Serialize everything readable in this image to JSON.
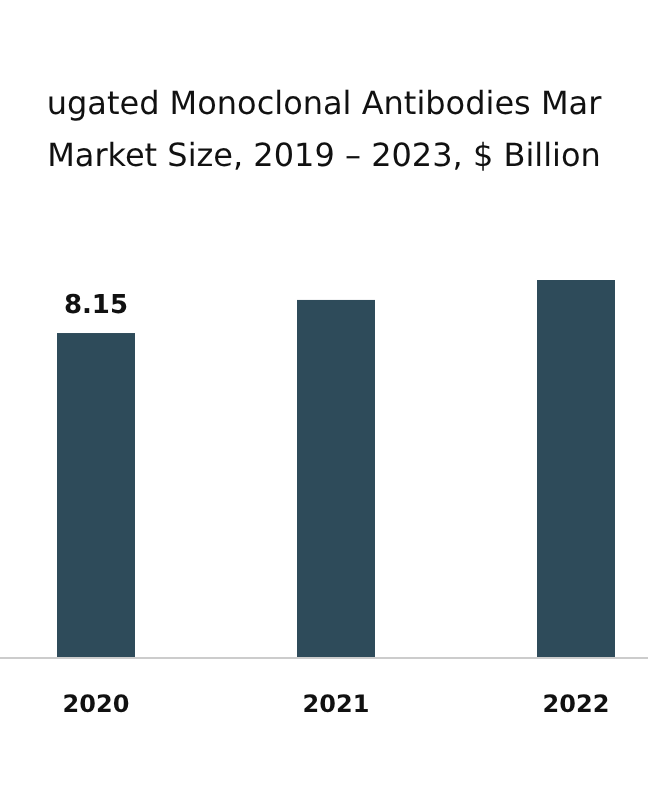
{
  "chart_data": {
    "type": "bar",
    "title": "ugated Monoclonal Antibodies Mar",
    "subtitle": "Market Size, 2019 – 2023, $ Billion",
    "categories": [
      "2020",
      "2021",
      "2022"
    ],
    "values": [
      8.15,
      8.98,
      9.48
    ],
    "value_labels": [
      "8.15",
      null,
      null
    ],
    "color": "#2e4b5a"
  }
}
